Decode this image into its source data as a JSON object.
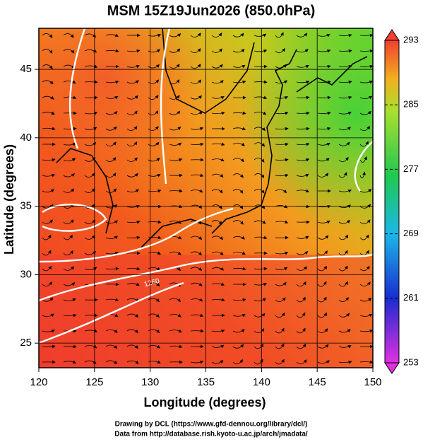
{
  "map": {
    "title": "MSM 15Z19Jun2026 (850.0hPa)",
    "xlabel": "Longitude (degrees)",
    "ylabel": "Latitude  (degrees)",
    "xlim": [
      120,
      150
    ],
    "xticks": [
      120,
      125,
      130,
      135,
      140,
      145,
      150
    ],
    "ylim": [
      23.2,
      48
    ],
    "yticks": [
      25,
      30,
      35,
      40,
      45
    ],
    "contour_label": "1260",
    "colorbar": {
      "lim": [
        253,
        293
      ],
      "ticks": [
        253,
        261,
        269,
        277,
        285,
        293
      ]
    },
    "footer": [
      "Drawing by DCL (https://www.gfd-dennou.org/library/dcl/)",
      "Data from http://database.rish.kyoto-u.ac.jp/arch/jmadata/"
    ]
  }
}
